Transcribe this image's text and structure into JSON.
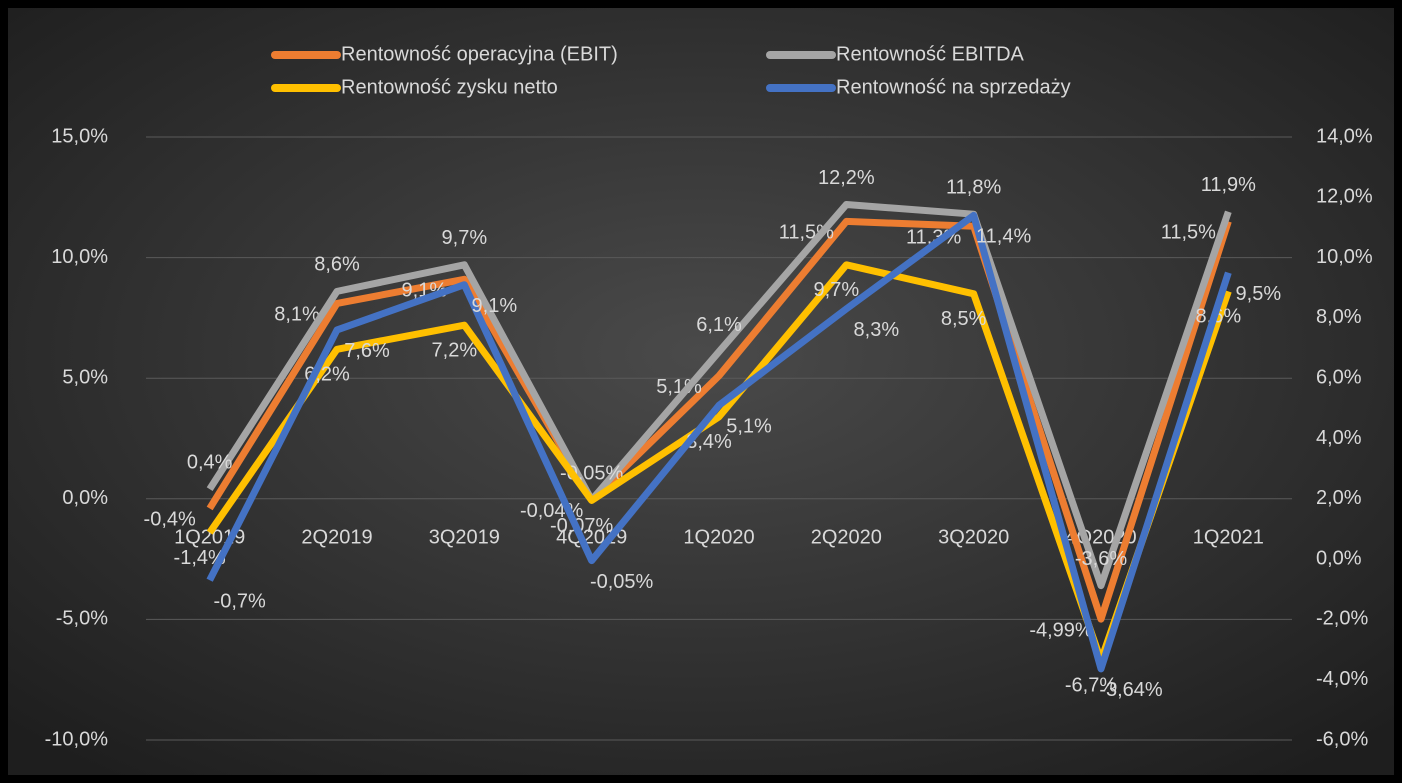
{
  "chart_data": {
    "type": "line",
    "categories": [
      "1Q2019",
      "2Q2019",
      "3Q2019",
      "4Q2019",
      "1Q2020",
      "2Q2020",
      "3Q2020",
      "4Q2020",
      "1Q2021"
    ],
    "series": [
      {
        "name": "Rentowność operacyjna (EBIT)",
        "color": "#ed7d31",
        "values": [
          -0.4,
          8.1,
          9.1,
          -0.04,
          5.1,
          11.5,
          11.3,
          -4.99,
          11.5
        ],
        "value_labels": [
          "-0,4%",
          "8,1%",
          "9,1%",
          "-0,04%",
          "5,1%",
          "11,5%",
          "11,3%",
          "-4,99%",
          "11,5%"
        ]
      },
      {
        "name": "Rentowność EBITDA",
        "color": "#a5a5a5",
        "values": [
          0.4,
          8.6,
          9.7,
          -0.05,
          6.1,
          12.2,
          11.8,
          -3.6,
          11.9
        ],
        "value_labels": [
          "0,4%",
          "8,6%",
          "9,7%",
          "-0,05%",
          "6,1%",
          "12,2%",
          "11,8%",
          "-3,6%",
          "11,9%"
        ]
      },
      {
        "name": "Rentowność zysku netto",
        "color": "#ffc000",
        "values": [
          -1.4,
          6.2,
          7.2,
          -0.07,
          3.4,
          9.7,
          8.5,
          -6.7,
          8.6
        ],
        "value_labels": [
          "-1,4%",
          "6,2%",
          "7,2%",
          "-0,07%",
          "3,4%",
          "9,7%",
          "8,5%",
          "-6,7%",
          "8,6%"
        ]
      },
      {
        "name": "Rentowność na sprzedaży",
        "color": "#4472c4",
        "axis": "y2",
        "values": [
          -0.7,
          7.6,
          9.1,
          -0.05,
          5.1,
          8.3,
          11.4,
          -3.64,
          9.5
        ],
        "value_labels": [
          "-0,7%",
          "7,6%",
          "9,1%",
          "-0,05%",
          "5,1%",
          "8,3%",
          "11,4%",
          "-3,64%",
          "9,5%"
        ]
      }
    ],
    "ylim": [
      -10,
      15
    ],
    "yticks": [
      {
        "value": -10,
        "label": "-10,0%"
      },
      {
        "value": -5,
        "label": "-5,0%"
      },
      {
        "value": 0,
        "label": "0,0%"
      },
      {
        "value": 5,
        "label": "5,0%"
      },
      {
        "value": 10,
        "label": "10,0%"
      },
      {
        "value": 15,
        "label": "15,0%"
      }
    ],
    "y2lim": [
      -6,
      14
    ],
    "y2ticks": [
      {
        "value": -6,
        "label": "-6,0%"
      },
      {
        "value": -4,
        "label": "-4,0%"
      },
      {
        "value": -2,
        "label": "-2,0%"
      },
      {
        "value": 0,
        "label": "0,0%"
      },
      {
        "value": 2,
        "label": "2,0%"
      },
      {
        "value": 4,
        "label": "4,0%"
      },
      {
        "value": 6,
        "label": "6,0%"
      },
      {
        "value": 8,
        "label": "8,0%"
      },
      {
        "value": 10,
        "label": "10,0%"
      },
      {
        "value": 12,
        "label": "12,0%"
      },
      {
        "value": 14,
        "label": "14,0%"
      }
    ],
    "grid": true
  }
}
